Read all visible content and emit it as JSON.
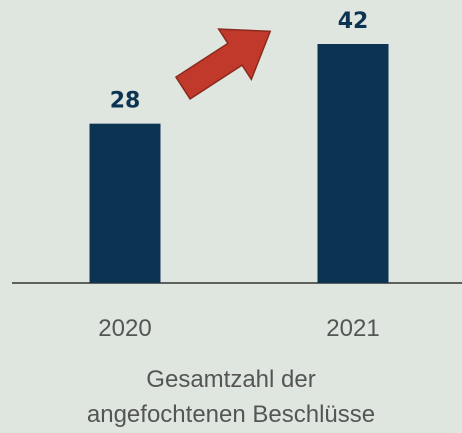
{
  "chart_data": {
    "type": "bar",
    "categories": [
      "2020",
      "2021"
    ],
    "values": [
      28,
      42
    ],
    "color": "#0d3352",
    "xlabel": "Gesamtzahl der angefochtenen Beschlüsse"
  }
}
